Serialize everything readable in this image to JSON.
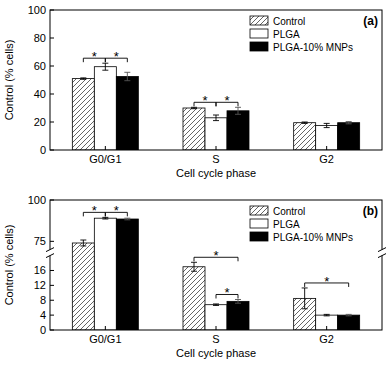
{
  "chart_data": [
    {
      "type": "bar",
      "title": "(a)",
      "x_label": "Cell cycle phase",
      "y_label": "Control (% cells)",
      "categories": [
        "G0/G1",
        "S",
        "G2"
      ],
      "series": [
        {
          "name": "Control",
          "color": "#555555",
          "values": [
            51,
            30,
            19.5
          ],
          "errors": [
            0.5,
            0.5,
            0.5
          ]
        },
        {
          "name": "PLGA",
          "color": "#ffffff",
          "values": [
            59.5,
            23,
            17.5
          ],
          "errors": [
            2.5,
            2,
            1.5
          ]
        },
        {
          "name": "PLGA-10% MNPs",
          "color": "#000000",
          "values": [
            52.5,
            28,
            19.5
          ],
          "errors": [
            3,
            2.5,
            0.8
          ]
        }
      ],
      "ylim": [
        0,
        100
      ],
      "yticks": [
        0,
        20,
        40,
        60,
        80,
        100
      ],
      "legend": "upper right",
      "comparisons": [
        {
          "text": "*",
          "category": 0,
          "pair": [
            0,
            1
          ]
        },
        {
          "text": "*",
          "category": 0,
          "pair": [
            1,
            2
          ]
        },
        {
          "text": "*",
          "category": 1,
          "pair": [
            0,
            1
          ]
        },
        {
          "text": "*",
          "category": 1,
          "pair": [
            1,
            2
          ]
        }
      ]
    },
    {
      "type": "bar",
      "title": "(b)",
      "x_label": "Cell cycle phase",
      "y_label": "Control (% cells)",
      "categories": [
        "G0/G1",
        "S",
        "G2"
      ],
      "series": [
        {
          "name": "Control",
          "color": "#555555",
          "values": [
            74,
            17,
            8.5
          ],
          "errors": [
            1.8,
            1.2,
            2.8
          ]
        },
        {
          "name": "PLGA",
          "color": "#ffffff",
          "values": [
            89,
            6.8,
            4
          ],
          "errors": [
            0.5,
            0.2,
            0.2
          ]
        },
        {
          "name": "PLGA-10% MNPs",
          "color": "#000000",
          "values": [
            88.5,
            7.7,
            4
          ],
          "errors": [
            0.5,
            0.5,
            0.2
          ]
        }
      ],
      "ylim": [
        0,
        100
      ],
      "yticks": [
        0,
        4,
        8,
        12,
        16,
        75,
        100
      ],
      "y_break": [
        20,
        70
      ],
      "legend": "upper right",
      "comparisons": [
        {
          "text": "*",
          "category": 0,
          "pair": [
            0,
            1
          ]
        },
        {
          "text": "*",
          "category": 0,
          "pair": [
            1,
            2
          ]
        },
        {
          "text": "*",
          "category": 1,
          "pair": [
            1,
            2
          ]
        },
        {
          "text": "*",
          "category": 1,
          "pair": [
            0,
            2
          ]
        },
        {
          "text": "*",
          "category": 2,
          "pair": [
            0,
            2
          ]
        }
      ]
    }
  ]
}
